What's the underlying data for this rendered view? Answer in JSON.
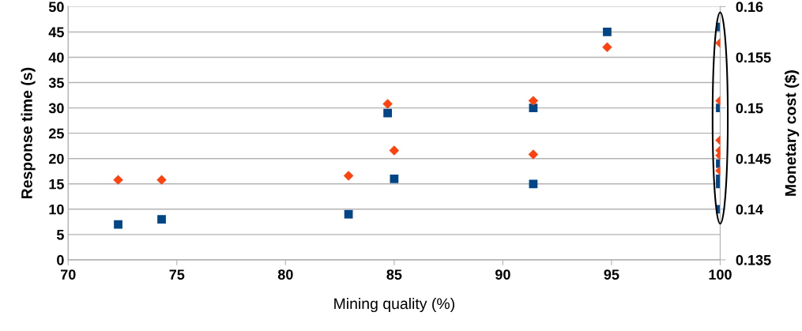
{
  "chart_data": {
    "type": "scatter",
    "xlabel": "Mining quality (%)",
    "ylabel": "Response time (s)",
    "y2label": "Monetary cost ($)",
    "xlim": [
      70,
      100
    ],
    "xticks": [
      70,
      75,
      80,
      85,
      90,
      95,
      100
    ],
    "ylim": [
      0,
      50
    ],
    "yticks": [
      0,
      5,
      10,
      15,
      20,
      25,
      30,
      35,
      40,
      45,
      50
    ],
    "y2lim": [
      0.135,
      0.16
    ],
    "y2ticks": [
      0.135,
      0.14,
      0.145,
      0.15,
      0.155,
      0.16
    ],
    "grid": "y",
    "series": [
      {
        "color": "#004586",
        "marker": "square",
        "x": [
          72.3,
          74.3,
          82.9,
          84.7,
          85.0,
          91.4,
          91.4,
          94.8,
          100,
          100,
          100,
          100,
          100,
          100
        ],
        "values": [
          7,
          8,
          9,
          29,
          16,
          30,
          15,
          45,
          46,
          30,
          19,
          16,
          15,
          10
        ]
      },
      {
        "color": "#ff420e",
        "marker": "diamond",
        "axis": "y2",
        "x": [
          72.3,
          74.3,
          82.9,
          84.7,
          85.0,
          91.4,
          91.4,
          94.8,
          100,
          100,
          100,
          100,
          100,
          100
        ],
        "values": [
          0.1429,
          0.1429,
          0.1433,
          0.1504,
          0.1458,
          0.1507,
          0.1454,
          0.156,
          0.1564,
          0.1507,
          0.1468,
          0.1458,
          0.1453,
          0.1438
        ]
      }
    ]
  }
}
